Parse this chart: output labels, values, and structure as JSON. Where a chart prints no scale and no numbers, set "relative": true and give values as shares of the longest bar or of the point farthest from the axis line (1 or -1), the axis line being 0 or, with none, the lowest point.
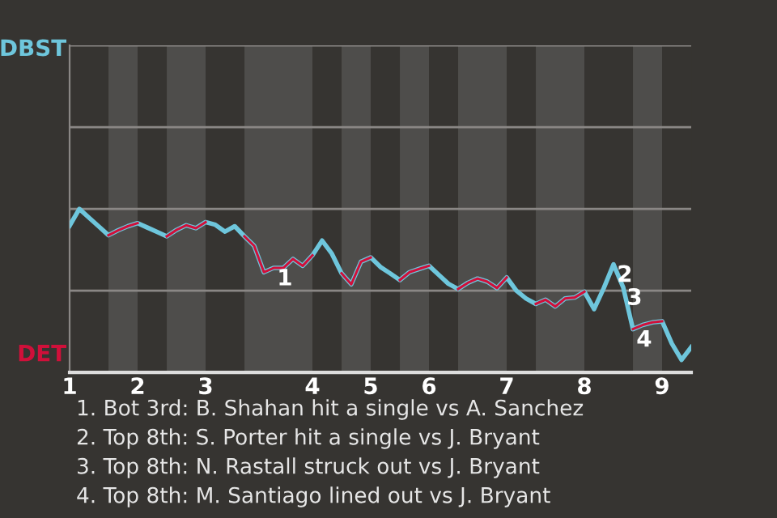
{
  "chart_data": {
    "type": "line",
    "relative": true,
    "categories": [
      "1",
      null,
      null,
      null,
      null,
      null,
      null,
      "2",
      null,
      null,
      null,
      null,
      null,
      null,
      "3",
      null,
      null,
      null,
      null,
      null,
      null,
      null,
      null,
      null,
      null,
      "4",
      null,
      null,
      null,
      null,
      null,
      "5",
      null,
      null,
      null,
      null,
      null,
      "6",
      null,
      null,
      null,
      null,
      null,
      null,
      null,
      "7",
      null,
      null,
      null,
      null,
      null,
      null,
      null,
      "8",
      null,
      null,
      null,
      null,
      null,
      null,
      null,
      "9",
      null,
      null,
      null
    ],
    "series": [
      {
        "name": "DBST",
        "color": "#6ec6dc",
        "values": [
          0.897,
          1,
          0.946,
          0.893,
          0.839,
          0.869,
          0.894,
          0.913,
          0.886,
          0.859,
          0.832,
          0.871,
          0.9,
          0.882,
          0.919,
          0.903,
          0.861,
          0.894,
          0.832,
          0.774,
          0.613,
          0.639,
          0.639,
          0.694,
          0.652,
          0.716,
          0.806,
          0.726,
          0.606,
          0.539,
          0.677,
          0.703,
          0.645,
          0.606,
          0.565,
          0.613,
          0.633,
          0.652,
          0.597,
          0.542,
          0.51,
          0.548,
          0.574,
          0.555,
          0.516,
          0.581,
          0.5,
          0.452,
          0.419,
          0.445,
          0.403,
          0.452,
          0.458,
          0.494,
          0.387,
          0.516,
          0.661,
          0.52,
          0.265,
          0.29,
          0.306,
          0.313,
          0.177,
          0.077,
          0.155
        ]
      },
      {
        "name": "DET",
        "color": "#d0103a",
        "values": [
          null,
          null,
          null,
          null,
          0.839,
          0.869,
          0.894,
          0.913,
          null,
          null,
          0.832,
          0.871,
          0.9,
          0.882,
          0.919,
          null,
          null,
          null,
          0.832,
          0.774,
          0.613,
          0.639,
          0.639,
          0.694,
          0.652,
          0.716,
          null,
          null,
          0.606,
          0.539,
          0.677,
          0.703,
          null,
          null,
          0.565,
          0.613,
          0.633,
          0.652,
          null,
          null,
          0.51,
          0.548,
          0.574,
          0.555,
          0.516,
          0.581,
          null,
          null,
          0.419,
          0.445,
          0.403,
          0.452,
          0.458,
          0.494,
          null,
          null,
          null,
          null,
          0.265,
          0.29,
          0.306,
          0.313,
          null,
          null,
          null
        ]
      }
    ],
    "annotations": [
      {
        "text": "1",
        "y": 0.639
      },
      {
        "text": "2",
        "y": 0.661
      },
      {
        "text": "3",
        "y": 0.52
      },
      {
        "text": "4",
        "y": 0.265
      },
      "1. Bot 3rd: B. Shahan hit a single vs A. Sanchez",
      "2. Top 8th: S. Porter hit a single vs J. Bryant",
      "3. Top 8th: N. Rastall struck out vs J. Bryant",
      "4. Top 8th: M. Santiago lined out vs J. Bryant"
    ],
    "ref_lines": [
      {
        "axis": "y",
        "value": 0.5,
        "color": "#8a8785"
      },
      {
        "axis": "y",
        "value": 1,
        "color": "#8a8785"
      },
      {
        "axis": "y",
        "value": 1.5,
        "color": "#8a8785"
      },
      {
        "axis": "y",
        "value": 2,
        "color": "#8a8785"
      }
    ],
    "legend": false,
    "marker": "none",
    "line_style": "solid"
  }
}
